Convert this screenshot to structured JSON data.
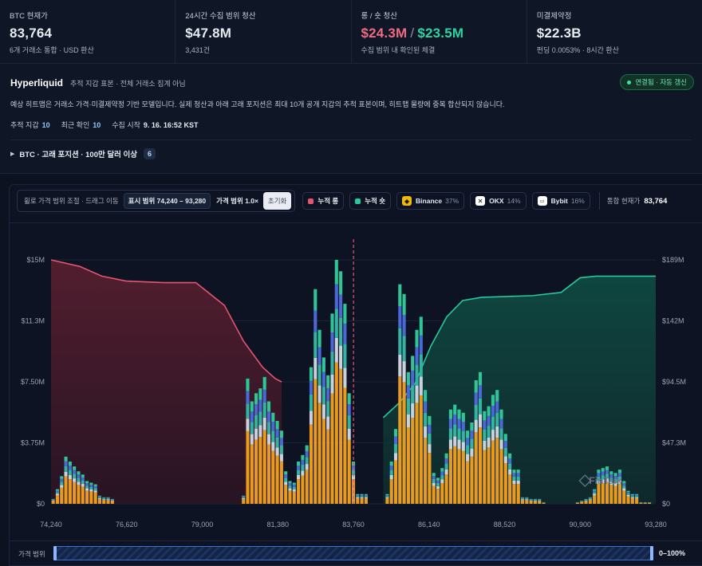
{
  "stats": [
    {
      "label": "BTC 현재가",
      "value": "83,764",
      "sub": "6개 거래소 통합 · USD 환산"
    },
    {
      "label": "24시간 수집 범위 청산",
      "value": "$47.8M",
      "sub": "3,431건"
    },
    {
      "label": "롱 / 숏 청산",
      "value_long": "$24.3M",
      "value_sep": "/",
      "value_short": "$23.5M",
      "sub": "수집 범위 내 확인된 체결"
    },
    {
      "label": "미결제약정",
      "value": "$22.3B",
      "sub": "펀딩 0.0053% · 8시간 환산"
    }
  ],
  "hyperliquid": {
    "title": "Hyperliquid",
    "note": "추적 지갑 표본 · 전체 거래소 집계 아님",
    "status": "연결됨 · 자동 갱신",
    "description": "예상 히트맵은 거래소 가격·미결제약정 기반 모델입니다. 실제 청산과 아래 고래 포지션은 최대 10개 공개 지갑의 추적 표본이며, 히트맵 물량에 중복 합산되지 않습니다.",
    "tracked_label": "추적 지갑",
    "tracked_value": "10",
    "recent_label": "최근 확인",
    "recent_value": "10",
    "start_label": "수집 시작",
    "start_value": "9. 16. 16:52 KST",
    "whale_label": "BTC · 고래 포지션 · 100만 달러 이상",
    "whale_count": "6"
  },
  "toolbar": {
    "zoom_hint": "휠로 가격 범위 조절 · 드래그 이동",
    "range": "표시 범위 74,240 – 93,280",
    "zoom": "가격 범위 1.0×",
    "reset": "초기화",
    "legend": [
      {
        "name": "누적 롱",
        "color": "#e2566f"
      },
      {
        "name": "누적 숏",
        "color": "#27c89a"
      },
      {
        "name": "Binance",
        "pct": "37%",
        "icon": "binance-icon"
      },
      {
        "name": "OKX",
        "pct": "14%",
        "icon": "okx-icon"
      },
      {
        "name": "Bybit",
        "pct": "16%",
        "icon": "bybit-icon"
      }
    ],
    "current_label": "통합 현재가",
    "current_value": "83,764"
  },
  "chart_data": {
    "type": "bar",
    "title": "",
    "xlabel": "",
    "ylabel": "",
    "current_price": 83764,
    "x_ticks": [
      "74,240",
      "76,620",
      "79,000",
      "81,380",
      "83,760",
      "86,140",
      "88,520",
      "90,900",
      "93,280"
    ],
    "y_left_ticks": [
      "$0",
      "$3.75M",
      "$7.50M",
      "$11.3M",
      "$15M"
    ],
    "y_right_ticks": [
      "$0",
      "$47.3M",
      "$94.5M",
      "$142M",
      "$189M"
    ],
    "ylim_left": [
      0,
      15
    ],
    "ylim_right": [
      0,
      189
    ],
    "xlim": [
      74240,
      93280
    ],
    "stack_colors": [
      "#e89b1f",
      "#c9d1dd",
      "#34b3a2",
      "#4a68d8",
      "#2fc596"
    ],
    "bar_totals_m": [
      0.3,
      0.9,
      1.7,
      2.9,
      2.6,
      2.3,
      2.0,
      1.8,
      1.4,
      1.3,
      1.2,
      0.5,
      0.4,
      0.4,
      0.3,
      0,
      0,
      0,
      0,
      0,
      0,
      0,
      0,
      0,
      0,
      0,
      0,
      0,
      0,
      0,
      0,
      0,
      0,
      0,
      0,
      0,
      0,
      0,
      0,
      0,
      0,
      0,
      0,
      0,
      0,
      0.5,
      7.7,
      6.3,
      6.8,
      7.1,
      7.8,
      6.3,
      5.6,
      5.1,
      4.5,
      2.0,
      1.4,
      1.3,
      2.6,
      3.0,
      3.6,
      8.4,
      13.2,
      10.7,
      9.0,
      7.9,
      11.7,
      15.0,
      14.3,
      12.3,
      6.8,
      2.6,
      0.6,
      0.6,
      0.6,
      0,
      0,
      0,
      0,
      0.6,
      2.6,
      4.6,
      13.5,
      12.9,
      8.1,
      9.1,
      10.7,
      11.5,
      7.0,
      5.4,
      1.9,
      1.6,
      2.2,
      3.1,
      5.8,
      6.1,
      5.8,
      5.6,
      4.5,
      5.0,
      7.6,
      8.1,
      5.7,
      6.0,
      6.7,
      7.0,
      5.8,
      4.3,
      3.1,
      2.1,
      2.1,
      0.4,
      0.4,
      0.3,
      0.3,
      0.3,
      0.1,
      0,
      0,
      0,
      0,
      0,
      0,
      0,
      0.1,
      0.2,
      0.3,
      0.4,
      0.9,
      2.1,
      2.2,
      2.3,
      2.0,
      1.9,
      2.1,
      1.4,
      0.8,
      0.6,
      0.6,
      0.1,
      0.1,
      0.1,
      0
    ],
    "cum_long_left_m": [
      [
        74240,
        15
      ],
      [
        75140,
        14.6
      ],
      [
        75840,
        14.0
      ],
      [
        76600,
        13.7
      ],
      [
        77800,
        13.6
      ],
      [
        78800,
        13.6
      ],
      [
        79700,
        12.2
      ],
      [
        80300,
        10.0
      ],
      [
        80900,
        8.4
      ],
      [
        81300,
        7.7
      ],
      [
        81500,
        7.5
      ]
    ],
    "cum_short_left_m": [
      [
        84700,
        5.3
      ],
      [
        85200,
        6.2
      ],
      [
        85700,
        7.4
      ],
      [
        86200,
        9.7
      ],
      [
        86700,
        11.5
      ],
      [
        87200,
        12.5
      ],
      [
        87800,
        12.7
      ],
      [
        89400,
        12.8
      ],
      [
        90300,
        13.0
      ],
      [
        90900,
        13.9
      ],
      [
        91400,
        14.0
      ],
      [
        92200,
        14.0
      ],
      [
        93280,
        14.0
      ]
    ],
    "watermark": "FinTalk"
  },
  "scroll": {
    "label": "가격 범위",
    "range": "0–100%",
    "start_frac": 0,
    "end_frac": 1
  }
}
